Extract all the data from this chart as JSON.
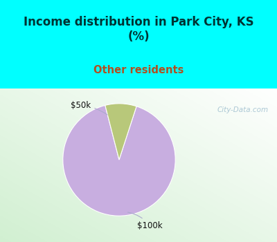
{
  "title": "Income distribution in Park City, KS\n(%)",
  "subtitle": "Other residents",
  "title_color": "#003333",
  "subtitle_color": "#b05020",
  "top_bg_color": "#00ffff",
  "watermark": "City-Data.com",
  "slices": [
    91.0,
    9.0
  ],
  "slice_colors": [
    "#c8aee0",
    "#b8c87a"
  ],
  "startangle": 72,
  "label_50k": "$50k",
  "label_100k": "$100k"
}
